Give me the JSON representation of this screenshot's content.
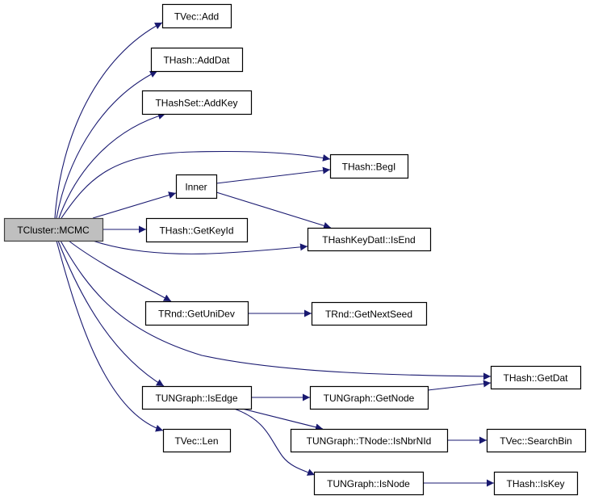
{
  "colors": {
    "edge": "#191970",
    "root_fill": "#bfbfbf",
    "node_fill": "#ffffff"
  },
  "nodes": [
    {
      "id": "mcmc",
      "label": "TCluster::MCMC",
      "root": true
    },
    {
      "id": "vadd",
      "label": "TVec::Add"
    },
    {
      "id": "adddat",
      "label": "THash::AddDat"
    },
    {
      "id": "addkey",
      "label": "THashSet::AddKey"
    },
    {
      "id": "inner",
      "label": "Inner"
    },
    {
      "id": "getkeyid",
      "label": "THash::GetKeyId"
    },
    {
      "id": "unidev",
      "label": "TRnd::GetUniDev"
    },
    {
      "id": "isedge",
      "label": "TUNGraph::IsEdge"
    },
    {
      "id": "len",
      "label": "TVec::Len"
    },
    {
      "id": "begi",
      "label": "THash::BegI"
    },
    {
      "id": "isend",
      "label": "THashKeyDatI::IsEnd"
    },
    {
      "id": "nextseed",
      "label": "TRnd::GetNextSeed"
    },
    {
      "id": "getdat",
      "label": "THash::GetDat"
    },
    {
      "id": "getnode",
      "label": "TUNGraph::GetNode"
    },
    {
      "id": "isnbr",
      "label": "TUNGraph::TNode::IsNbrNId"
    },
    {
      "id": "searchbin",
      "label": "TVec::SearchBin"
    },
    {
      "id": "isnode",
      "label": "TUNGraph::IsNode"
    },
    {
      "id": "iskey",
      "label": "THash::IsKey"
    }
  ],
  "edges": [
    [
      "mcmc",
      "vadd"
    ],
    [
      "mcmc",
      "adddat"
    ],
    [
      "mcmc",
      "addkey"
    ],
    [
      "mcmc",
      "begi"
    ],
    [
      "mcmc",
      "inner"
    ],
    [
      "mcmc",
      "getkeyid"
    ],
    [
      "mcmc",
      "isend"
    ],
    [
      "mcmc",
      "unidev"
    ],
    [
      "mcmc",
      "getdat"
    ],
    [
      "mcmc",
      "isedge"
    ],
    [
      "mcmc",
      "len"
    ],
    [
      "inner",
      "begi"
    ],
    [
      "inner",
      "isend"
    ],
    [
      "unidev",
      "nextseed"
    ],
    [
      "isedge",
      "getnode"
    ],
    [
      "isedge",
      "isnbr"
    ],
    [
      "isedge",
      "isnode"
    ],
    [
      "getnode",
      "getdat"
    ],
    [
      "isnbr",
      "searchbin"
    ],
    [
      "isnode",
      "iskey"
    ]
  ]
}
